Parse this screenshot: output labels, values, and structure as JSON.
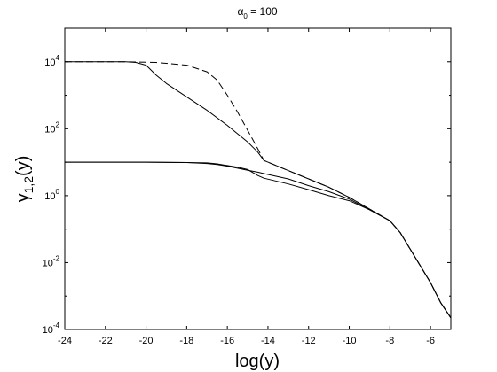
{
  "chart_data": {
    "type": "line",
    "title_greek": "α",
    "title_sub": "0",
    "title_rest": " = 100",
    "xlabel": "log(y)",
    "ylabel_main": "γ",
    "ylabel_sub": "1,2",
    "ylabel_rest": "(y)",
    "xlim": [
      -24,
      -5
    ],
    "ylim_log10": [
      -4,
      5
    ],
    "y_scale": "log",
    "grid": false,
    "legend": "none",
    "x_ticks": [
      -24,
      -22,
      -20,
      -18,
      -16,
      -14,
      -12,
      -10,
      -8,
      -6
    ],
    "y_ticks_exponent": [
      -4,
      -2,
      0,
      2,
      4
    ],
    "y_tick_base": "10",
    "line_color": "#000000",
    "series": [
      {
        "style": "dashed",
        "x": [
          -24,
          -21,
          -19.5,
          -18,
          -17,
          -16.5,
          -16,
          -15.5,
          -15,
          -14.5,
          -14.2,
          -13,
          -12,
          -11,
          -10,
          -9,
          -8,
          -7.5,
          -7,
          -6.5,
          -6,
          -5.5,
          -5
        ],
        "log10_y": [
          4.0,
          4.0,
          3.98,
          3.9,
          3.7,
          3.45,
          3.0,
          2.5,
          1.95,
          1.4,
          1.05,
          0.75,
          0.5,
          0.25,
          -0.05,
          -0.4,
          -0.75,
          -1.1,
          -1.6,
          -2.1,
          -2.6,
          -3.2,
          -3.65
        ]
      },
      {
        "style": "solid",
        "x": [
          -24,
          -21,
          -20.5,
          -20,
          -19.5,
          -19,
          -18,
          -17,
          -16,
          -15,
          -14.5,
          -14.2,
          -13,
          -12,
          -11,
          -10,
          -9,
          -8,
          -7.5,
          -7,
          -6.5,
          -6,
          -5.5,
          -5
        ],
        "log10_y": [
          4.0,
          4.0,
          3.98,
          3.9,
          3.6,
          3.35,
          2.95,
          2.55,
          2.1,
          1.6,
          1.3,
          1.05,
          0.75,
          0.5,
          0.25,
          -0.05,
          -0.4,
          -0.75,
          -1.1,
          -1.6,
          -2.1,
          -2.6,
          -3.2,
          -3.65
        ]
      },
      {
        "style": "solid",
        "x": [
          -24,
          -20,
          -18,
          -17,
          -16.5,
          -16,
          -15.5,
          -15,
          -14.5,
          -14.2,
          -13,
          -12,
          -11,
          -10,
          -9,
          -8,
          -7.5,
          -7,
          -6.5,
          -6,
          -5.5,
          -5
        ],
        "log10_y": [
          1.0,
          1.0,
          0.99,
          0.96,
          0.93,
          0.88,
          0.82,
          0.76,
          0.7,
          0.66,
          0.5,
          0.3,
          0.12,
          -0.1,
          -0.42,
          -0.75,
          -1.1,
          -1.6,
          -2.1,
          -2.6,
          -3.2,
          -3.65
        ]
      },
      {
        "style": "solid",
        "x": [
          -24,
          -20,
          -18,
          -17,
          -16.5,
          -16,
          -15.5,
          -15,
          -14.5,
          -14.2,
          -13,
          -12,
          -11,
          -10,
          -9,
          -8,
          -7.5,
          -7,
          -6.5,
          -6,
          -5.5,
          -5
        ],
        "log10_y": [
          1.0,
          1.0,
          0.99,
          0.98,
          0.95,
          0.9,
          0.85,
          0.78,
          0.6,
          0.52,
          0.35,
          0.18,
          0.0,
          -0.15,
          -0.42,
          -0.75,
          -1.1,
          -1.6,
          -2.1,
          -2.6,
          -3.2,
          -3.65
        ]
      }
    ]
  }
}
